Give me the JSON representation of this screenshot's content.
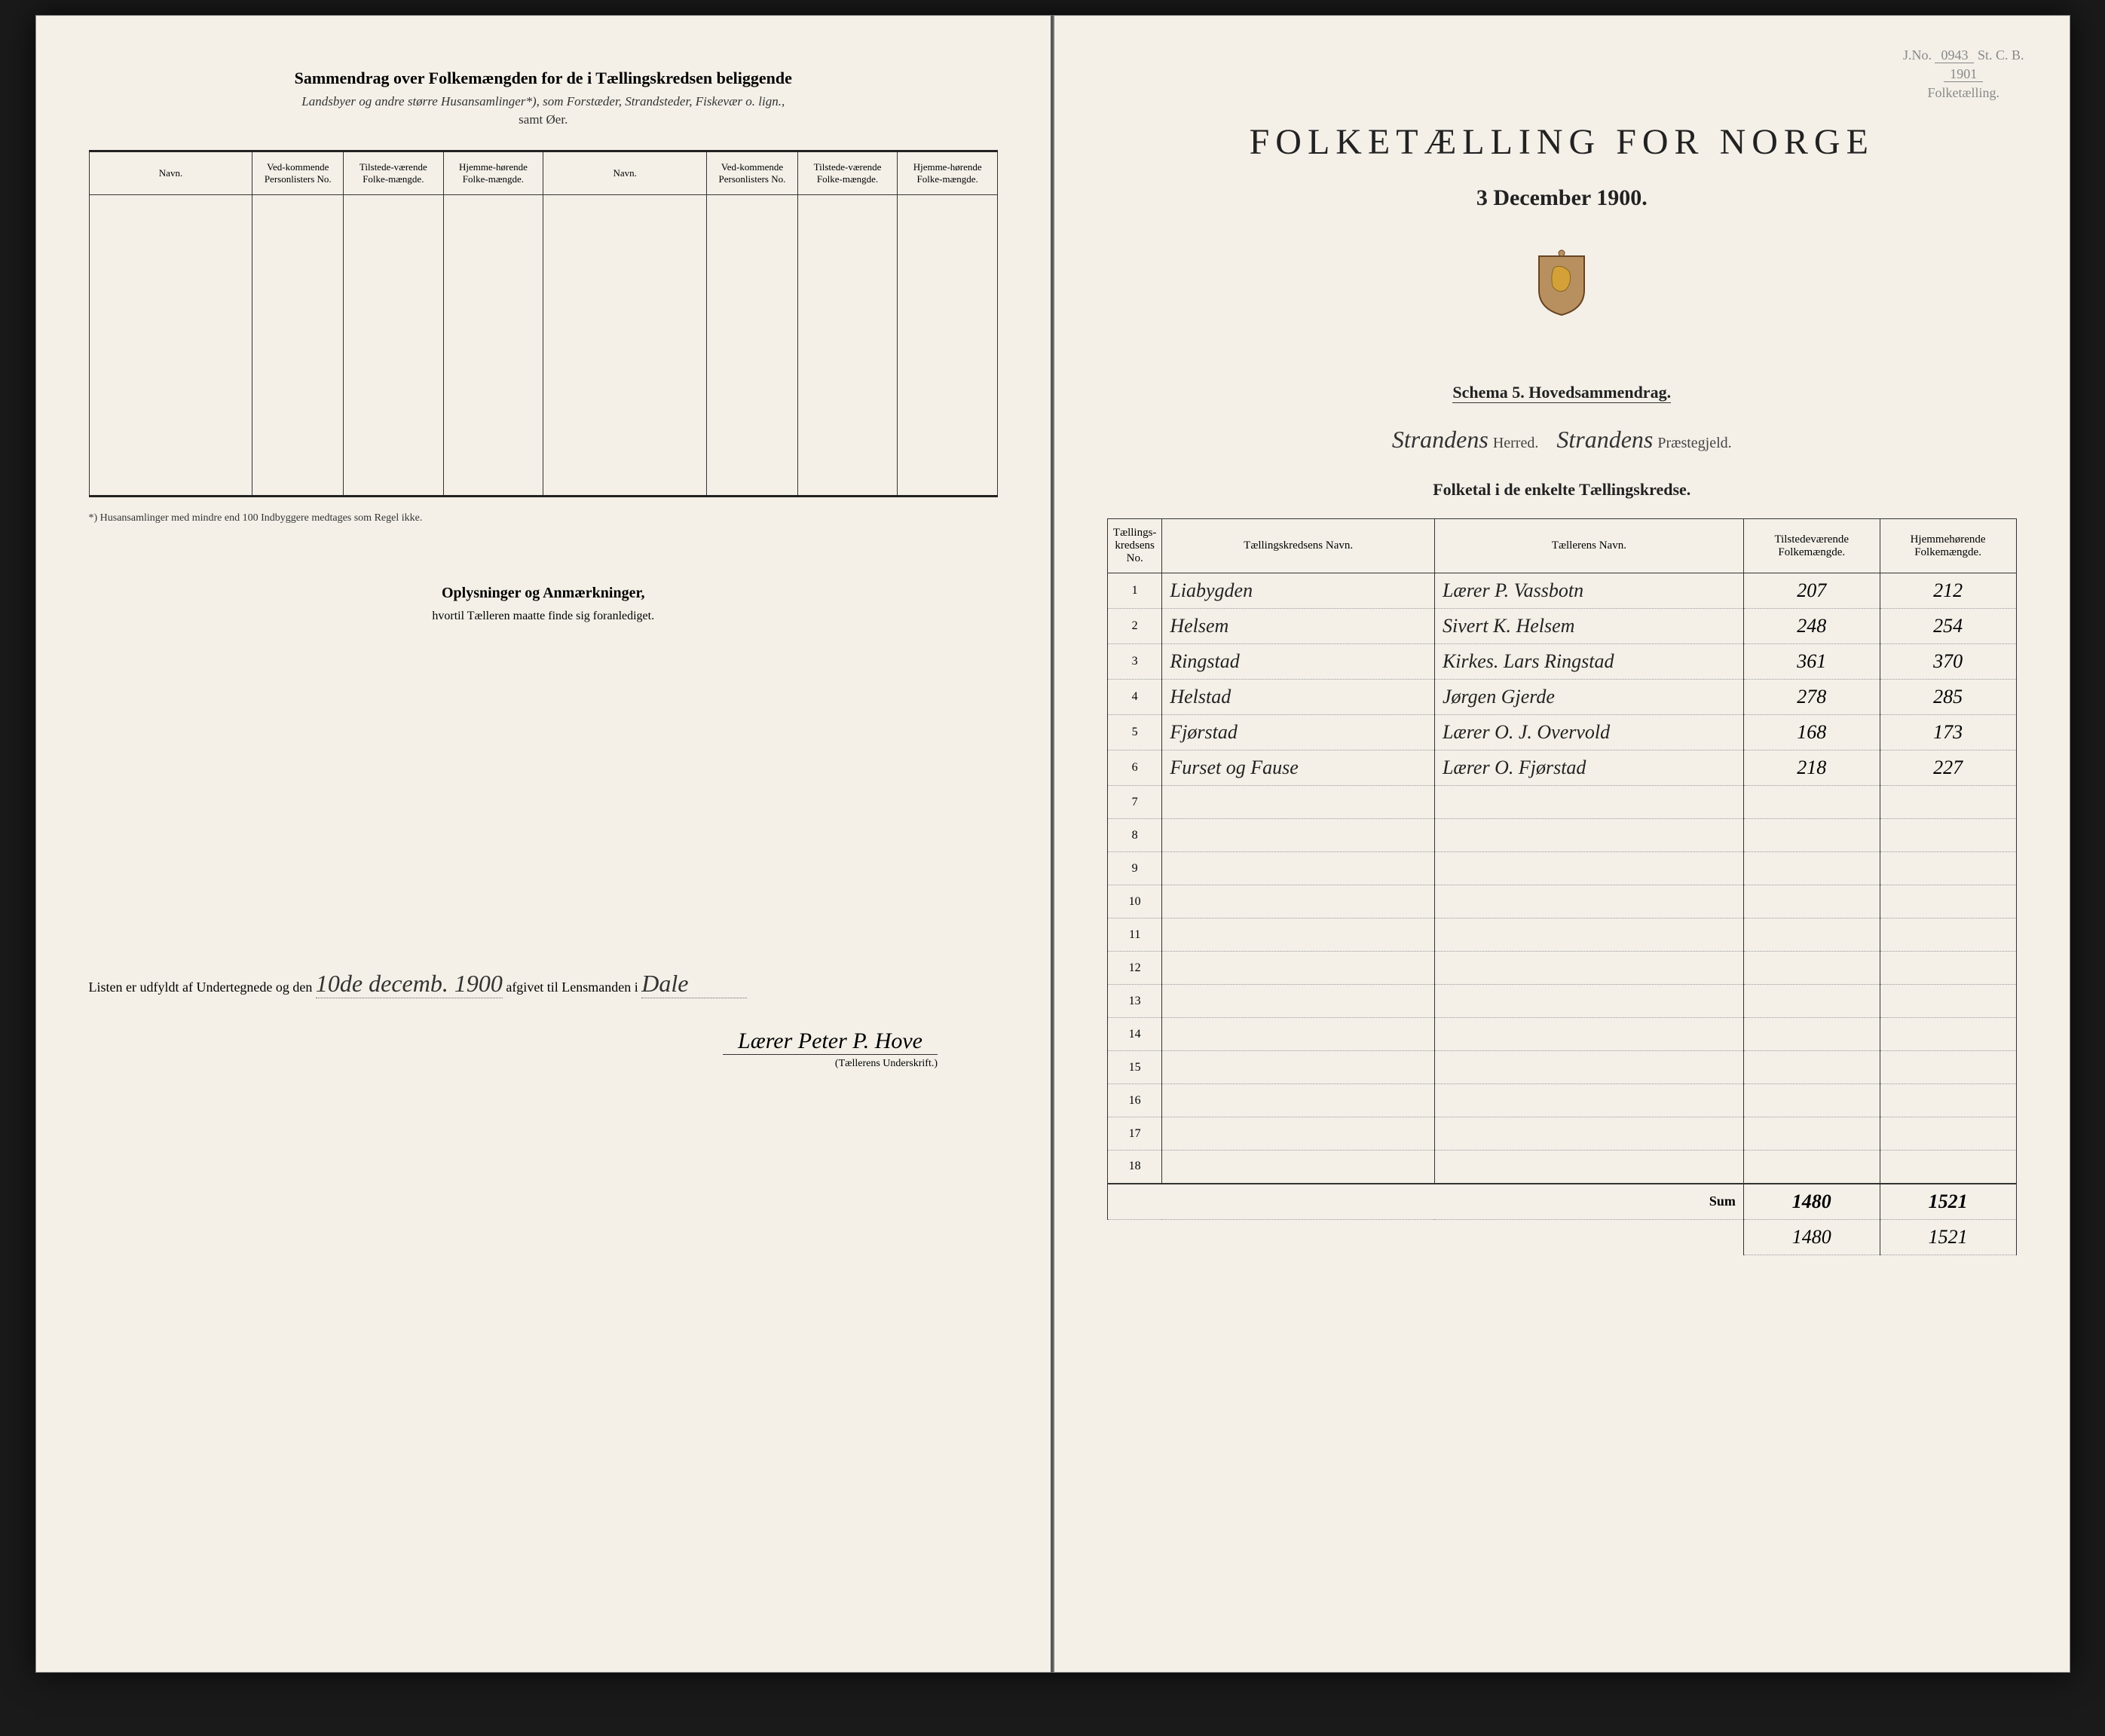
{
  "stamp": {
    "jno_label": "J.No.",
    "jno_value": "0943",
    "st_label": "St. C. B.",
    "year": "1901",
    "dept": "Folketælling."
  },
  "right": {
    "title": "FOLKETÆLLING FOR NORGE",
    "date": "3 December 1900.",
    "schema": "Schema 5.   Hovedsammendrag.",
    "herred_name": "Strandens",
    "herred_label": "Herred.",
    "praeste_name": "Strandens",
    "praeste_label": "Præstegjeld.",
    "sub_heading": "Folketal i de enkelte Tællingskredse.",
    "headers": {
      "no": "Tællings-kredsens No.",
      "name": "Tællingskredsens Navn.",
      "counter": "Tællerens Navn.",
      "present": "Tilstedeværende Folkemængde.",
      "resident": "Hjemmehørende Folkemængde."
    },
    "rows": [
      {
        "no": "1",
        "name": "Liabygden",
        "counter": "Lærer P. Vassbotn",
        "present": "207",
        "resident": "212"
      },
      {
        "no": "2",
        "name": "Helsem",
        "counter": "Sivert K. Helsem",
        "present": "248",
        "resident": "254"
      },
      {
        "no": "3",
        "name": "Ringstad",
        "counter": "Kirkes. Lars Ringstad",
        "present": "361",
        "resident": "370"
      },
      {
        "no": "4",
        "name": "Helstad",
        "counter": "Jørgen Gjerde",
        "present": "278",
        "resident": "285"
      },
      {
        "no": "5",
        "name": "Fjørstad",
        "counter": "Lærer O. J. Overvold",
        "present": "168",
        "resident": "173"
      },
      {
        "no": "6",
        "name": "Furset og Fause",
        "counter": "Lærer O. Fjørstad",
        "present": "218",
        "resident": "227"
      },
      {
        "no": "7",
        "name": "",
        "counter": "",
        "present": "",
        "resident": ""
      },
      {
        "no": "8",
        "name": "",
        "counter": "",
        "present": "",
        "resident": ""
      },
      {
        "no": "9",
        "name": "",
        "counter": "",
        "present": "",
        "resident": ""
      },
      {
        "no": "10",
        "name": "",
        "counter": "",
        "present": "",
        "resident": ""
      },
      {
        "no": "11",
        "name": "",
        "counter": "",
        "present": "",
        "resident": ""
      },
      {
        "no": "12",
        "name": "",
        "counter": "",
        "present": "",
        "resident": ""
      },
      {
        "no": "13",
        "name": "",
        "counter": "",
        "present": "",
        "resident": ""
      },
      {
        "no": "14",
        "name": "",
        "counter": "",
        "present": "",
        "resident": ""
      },
      {
        "no": "15",
        "name": "",
        "counter": "",
        "present": "",
        "resident": ""
      },
      {
        "no": "16",
        "name": "",
        "counter": "",
        "present": "",
        "resident": ""
      },
      {
        "no": "17",
        "name": "",
        "counter": "",
        "present": "",
        "resident": ""
      },
      {
        "no": "18",
        "name": "",
        "counter": "",
        "present": "",
        "resident": ""
      }
    ],
    "sum_label": "Sum",
    "sum_present": "1480",
    "sum_resident": "1521",
    "sum_present2": "1480",
    "sum_resident2": "1521"
  },
  "left": {
    "title": "Sammendrag over Folkemængden for de i Tællingskredsen beliggende",
    "subtitle": "Landsbyer og andre større Husansamlinger*), som Forstæder, Strandsteder, Fiskevær o. lign.,",
    "subtitle2": "samt Øer.",
    "headers": {
      "navn": "Navn.",
      "lists": "Ved-kommende Personlisters No.",
      "present": "Tilstede-værende Folke-mængde.",
      "resident": "Hjemme-hørende Folke-mængde."
    },
    "footnote": "*) Husansamlinger med mindre end 100 Indbyggere medtages som Regel ikke.",
    "oplysninger": "Oplysninger og Anmærkninger,",
    "oplysninger_sub": "hvortil Tælleren maatte finde sig foranlediget.",
    "bottom_pre": "Listen er udfyldt af Undertegnede og den",
    "bottom_date": "10de decemb. 1900",
    "bottom_mid": "afgivet til Lensmanden i",
    "bottom_place": "Dale",
    "signature": "Lærer Peter P. Hove",
    "sig_label": "(Tællerens Underskrift.)"
  },
  "colors": {
    "page_bg": "#f4f0e8",
    "ink": "#222222",
    "border": "#333333"
  }
}
